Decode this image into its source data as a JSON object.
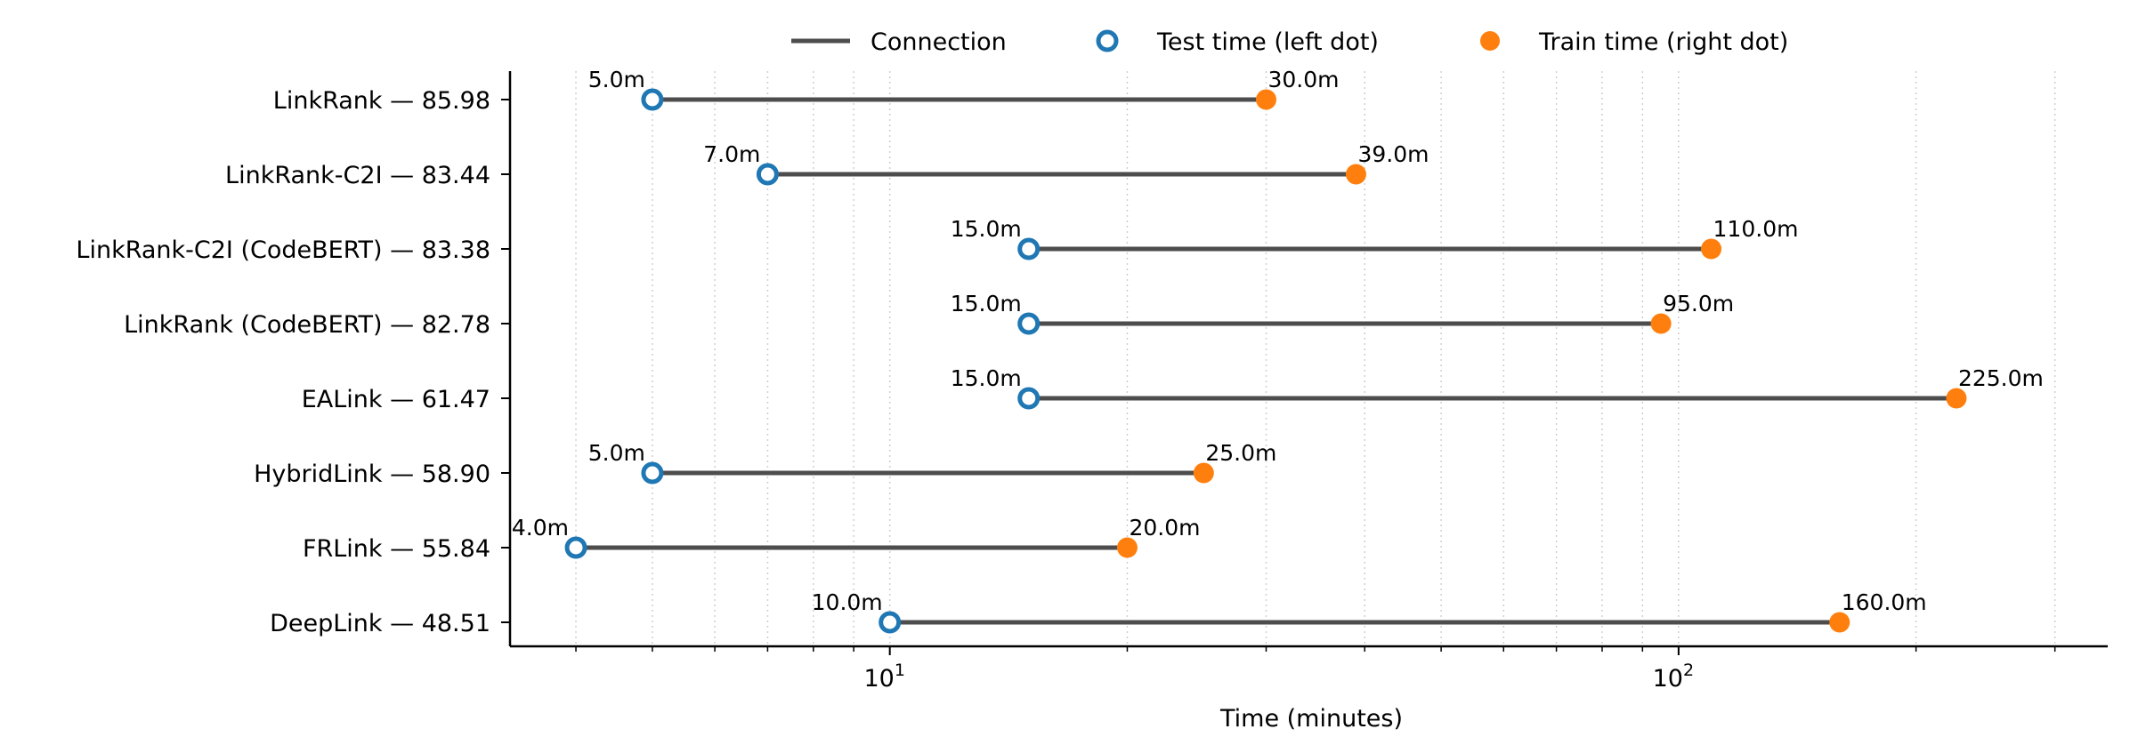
{
  "chart_data": {
    "type": "dumbbell",
    "title": "",
    "xlabel": "Time (minutes)",
    "ylabel": "",
    "x_scale": "log",
    "xlim": [
      3.3,
      350
    ],
    "x_ticks": [
      {
        "value": 10,
        "base": "10",
        "exp": "1"
      },
      {
        "value": 100,
        "base": "10",
        "exp": "2"
      }
    ],
    "grid": "vertical minor dotted",
    "legend_position": "top",
    "legend": {
      "connection": "Connection",
      "test": "Test time (left dot)",
      "train": "Train time (right dot)"
    },
    "colors": {
      "connection": "#4d4d4d",
      "test": "#1f77b4",
      "train": "#ff7f0e",
      "grid": "#d0d0d0",
      "axis": "#000000"
    },
    "categories": [
      "LinkRank — 85.98",
      "LinkRank-C2I — 83.44",
      "LinkRank-C2I (CodeBERT) — 83.38",
      "LinkRank (CodeBERT) — 82.78",
      "EALink — 61.47",
      "HybridLink — 58.90",
      "FRLink — 55.84",
      "DeepLink — 48.51"
    ],
    "series": [
      {
        "name": "Test time (left dot)",
        "values": [
          5.0,
          7.0,
          15.0,
          15.0,
          15.0,
          5.0,
          4.0,
          10.0
        ]
      },
      {
        "name": "Train time (right dot)",
        "values": [
          30.0,
          39.0,
          110.0,
          95.0,
          225.0,
          25.0,
          20.0,
          160.0
        ]
      }
    ],
    "test_labels": [
      "5.0m",
      "7.0m",
      "15.0m",
      "15.0m",
      "15.0m",
      "5.0m",
      "4.0m",
      "10.0m"
    ],
    "train_labels": [
      "30.0m",
      "39.0m",
      "110.0m",
      "95.0m",
      "225.0m",
      "25.0m",
      "20.0m",
      "160.0m"
    ]
  }
}
